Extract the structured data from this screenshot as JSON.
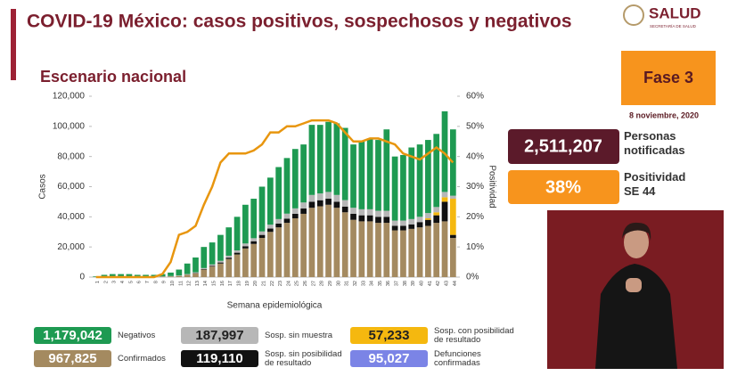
{
  "header": {
    "title": "COVID-19 México: casos positivos, sospechosos y negativos",
    "subtitle": "Escenario nacional",
    "logo": "SALUD",
    "logo_subtitle": "SECRETARÍA DE SALUD"
  },
  "side": {
    "phase": "Fase 3",
    "date": "8 noviembre, 2020",
    "notified": "2,511,207",
    "notified_label": "Personas notificadas",
    "positivity": "38%",
    "positivity_label": "Positividad SE 44"
  },
  "deaths": {
    "total": "95,027",
    "label": "Defunciones confirmadas",
    "color": "#7b84e6"
  },
  "chart_data": {
    "type": "bar",
    "stacked": true,
    "xlabel": "Semana epidemiológica",
    "ylabel": "Casos",
    "y2label": "Positividad",
    "categories": [
      "1",
      "2",
      "3",
      "4",
      "5",
      "6",
      "7",
      "8",
      "9",
      "10",
      "11",
      "12",
      "13",
      "14",
      "15",
      "16",
      "17",
      "18",
      "19",
      "20",
      "21",
      "22",
      "23",
      "24",
      "25",
      "26",
      "27",
      "28",
      "29",
      "30",
      "31",
      "32",
      "33",
      "34",
      "35",
      "36",
      "37",
      "38",
      "39",
      "40",
      "41",
      "42",
      "43",
      "44"
    ],
    "series": [
      {
        "name": "Confirmados",
        "total": "967,825",
        "color": "#a48a60",
        "values": [
          0,
          100,
          200,
          200,
          200,
          200,
          200,
          200,
          300,
          500,
          800,
          1500,
          2500,
          5000,
          7000,
          9000,
          12000,
          15000,
          19000,
          22000,
          26000,
          30000,
          33000,
          36000,
          39000,
          42000,
          46000,
          47000,
          48000,
          46000,
          43000,
          38000,
          37000,
          37000,
          36000,
          36000,
          31000,
          31000,
          32000,
          33000,
          34000,
          36000,
          37000,
          26000
        ]
      },
      {
        "name": "Sosp. sin posibilidad de resultado",
        "total": "119,110",
        "color": "#111111",
        "values": [
          0,
          0,
          0,
          0,
          0,
          0,
          0,
          0,
          0,
          0,
          0,
          100,
          200,
          300,
          500,
          700,
          900,
          1200,
          1500,
          1800,
          2000,
          2200,
          2500,
          2800,
          3000,
          3500,
          4000,
          4000,
          4000,
          4000,
          3800,
          4000,
          4000,
          4000,
          4000,
          4000,
          3000,
          3000,
          3000,
          3500,
          4000,
          5000,
          13000,
          2000
        ]
      },
      {
        "name": "Sosp. con posibilidad de resultado",
        "total": "57,233",
        "color": "#f5b80f",
        "values": [
          0,
          0,
          0,
          0,
          0,
          0,
          0,
          0,
          0,
          0,
          0,
          0,
          0,
          0,
          0,
          0,
          0,
          0,
          0,
          0,
          0,
          0,
          0,
          0,
          0,
          0,
          0,
          0,
          0,
          0,
          0,
          0,
          0,
          0,
          0,
          0,
          0,
          0,
          0,
          0,
          1000,
          2000,
          3000,
          24000
        ]
      },
      {
        "name": "Sosp. sin muestra",
        "total": "187,997",
        "color": "#b7b7b7",
        "values": [
          100,
          100,
          100,
          100,
          100,
          100,
          100,
          100,
          200,
          200,
          300,
          400,
          500,
          700,
          900,
          1100,
          1300,
          1500,
          1800,
          2000,
          2300,
          2600,
          3000,
          3300,
          3600,
          4000,
          4500,
          4500,
          4500,
          4500,
          4300,
          4000,
          4000,
          4000,
          4000,
          4000,
          3500,
          3500,
          3500,
          3500,
          3500,
          3500,
          3500,
          2000
        ]
      },
      {
        "name": "Negativos",
        "total": "1,179,042",
        "color": "#1e9a52",
        "values": [
          400,
          1300,
          1700,
          1700,
          1700,
          1200,
          1200,
          1200,
          1500,
          2300,
          3900,
          7000,
          9800,
          14000,
          14600,
          17200,
          18800,
          22300,
          25700,
          26200,
          29700,
          31200,
          34500,
          36900,
          39400,
          38500,
          46500,
          45500,
          46500,
          47500,
          47900,
          42000,
          45000,
          47000,
          47000,
          54000,
          42500,
          43500,
          47500,
          48000,
          48500,
          48500,
          53500,
          44000
        ]
      },
      {
        "type": "line",
        "axis": "y2",
        "color": "#e8960f",
        "values": [
          0,
          0,
          0,
          0,
          0,
          0,
          0,
          0,
          1,
          5,
          14,
          15,
          17,
          24,
          30,
          38,
          41,
          41,
          41,
          42,
          44,
          48,
          48,
          50,
          50,
          51,
          52,
          52,
          52,
          51,
          48,
          45,
          45,
          46,
          46,
          45,
          44,
          41,
          40,
          39,
          41,
          43,
          41,
          38
        ]
      }
    ],
    "ylim": [
      0,
      120000
    ],
    "yticks": [
      0,
      {
        "value": 20000,
        "label": "20,000"
      },
      {
        "value": 40000,
        "label": "40,000"
      },
      {
        "value": 60000,
        "label": "60,000"
      },
      {
        "value": 80000,
        "label": "80,000"
      },
      {
        "value": 100000,
        "label": "100,000"
      },
      {
        "value": 120000,
        "label": "120,000"
      }
    ],
    "y2lim": [
      0,
      60
    ],
    "y2ticks": [
      {
        "value": 0,
        "label": "0%"
      },
      {
        "value": 10,
        "label": "10%"
      },
      {
        "value": 20,
        "label": "20%"
      },
      {
        "value": 30,
        "label": "30%"
      },
      {
        "value": 40,
        "label": "40%"
      },
      {
        "value": 50,
        "label": "50%"
      },
      {
        "value": 60,
        "label": "60%"
      }
    ],
    "grid": false
  }
}
